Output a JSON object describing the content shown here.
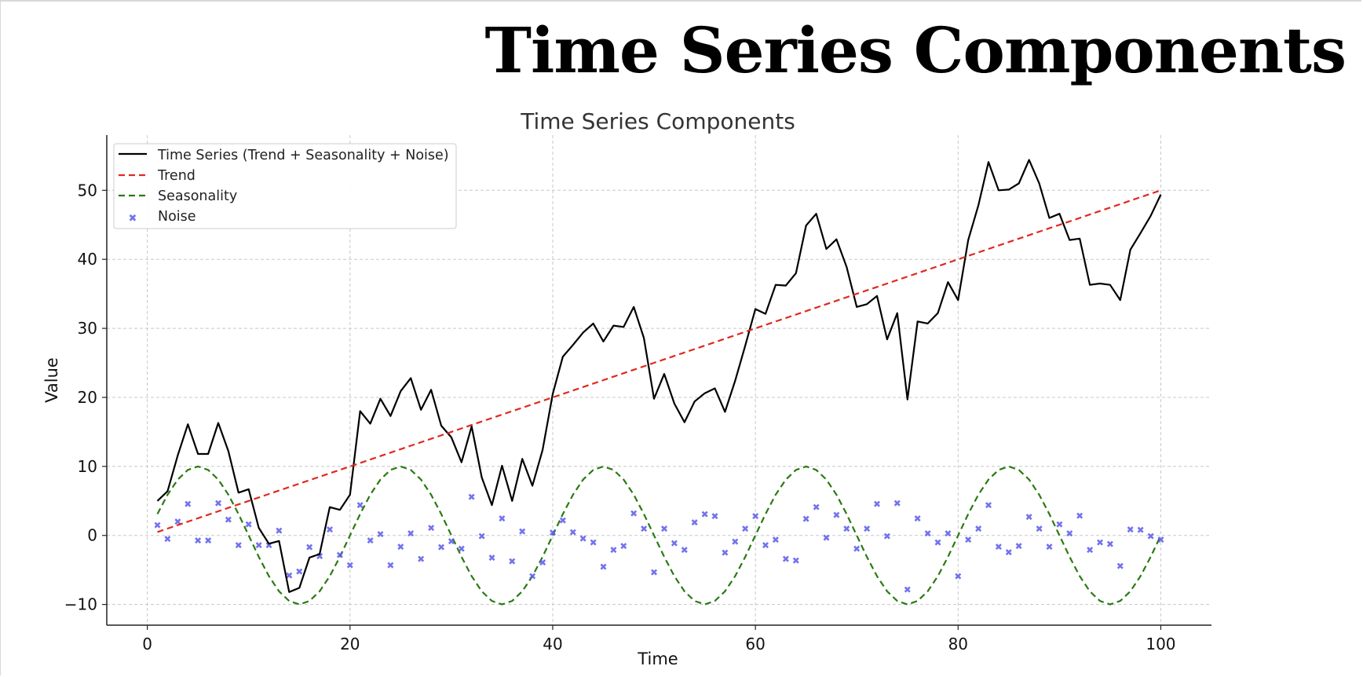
{
  "header": {
    "title": "Time Series Components"
  },
  "colors": {
    "series": "#000000",
    "trend": "#e0291f",
    "seasonality": "#2a7a12",
    "noise": "#5b5bea",
    "grid": "#c8c8c8"
  },
  "chart_data": {
    "type": "line",
    "title": "Time Series Components",
    "xlabel": "Time",
    "ylabel": "Value",
    "xlim": [
      -4,
      105
    ],
    "ylim": [
      -13,
      58
    ],
    "xticks": [
      0,
      20,
      40,
      60,
      80,
      100
    ],
    "xtick_labels": [
      "0",
      "20",
      "40",
      "60",
      "80",
      "100"
    ],
    "yticks": [
      -10,
      0,
      10,
      20,
      30,
      40,
      50
    ],
    "ytick_labels": [
      "−10",
      "0",
      "10",
      "20",
      "30",
      "40",
      "50"
    ],
    "grid": true,
    "legend_position": "top-left",
    "x": [
      1,
      2,
      3,
      4,
      5,
      6,
      7,
      8,
      9,
      10,
      11,
      12,
      13,
      14,
      15,
      16,
      17,
      18,
      19,
      20,
      21,
      22,
      23,
      24,
      25,
      26,
      27,
      28,
      29,
      30,
      31,
      32,
      33,
      34,
      35,
      36,
      37,
      38,
      39,
      40,
      41,
      42,
      43,
      44,
      45,
      46,
      47,
      48,
      49,
      50,
      51,
      52,
      53,
      54,
      55,
      56,
      57,
      58,
      59,
      60,
      61,
      62,
      63,
      64,
      65,
      66,
      67,
      68,
      69,
      70,
      71,
      72,
      73,
      74,
      75,
      76,
      77,
      78,
      79,
      80,
      81,
      82,
      83,
      84,
      85,
      86,
      87,
      88,
      89,
      90,
      91,
      92,
      93,
      94,
      95,
      96,
      97,
      98,
      99,
      100
    ],
    "series": [
      {
        "name": "Time Series (Trend + Seasonality + Noise)",
        "style": "solid",
        "values": [
          5.0,
          6.4,
          11.6,
          16.1,
          11.8,
          11.8,
          16.3,
          12.2,
          6.2,
          6.7,
          1.1,
          -1.2,
          -0.8,
          -8.2,
          -7.6,
          -3.2,
          -2.7,
          4.1,
          3.7,
          5.9,
          18.0,
          16.2,
          19.8,
          17.3,
          20.9,
          22.8,
          18.2,
          21.1,
          15.9,
          14.2,
          10.6,
          15.8,
          8.4,
          4.4,
          10.1,
          5.0,
          11.1,
          7.2,
          12.4,
          20.5,
          25.9,
          27.6,
          29.4,
          30.7,
          28.1,
          30.4,
          30.2,
          33.1,
          28.6,
          19.8,
          23.4,
          19.1,
          16.4,
          19.4,
          20.6,
          21.3,
          17.9,
          22.4,
          27.5,
          32.8,
          32.1,
          36.3,
          36.2,
          38.0,
          44.9,
          46.6,
          41.5,
          42.9,
          38.9,
          33.1,
          33.5,
          34.7,
          28.4,
          32.2,
          19.7,
          31.0,
          30.7,
          32.2,
          36.7,
          34.1,
          42.8,
          47.8,
          54.1,
          50.0,
          50.1,
          51.0,
          54.4,
          51.0,
          46.0,
          46.6,
          42.8,
          43.0,
          36.3,
          36.5,
          36.3,
          34.1,
          41.4,
          43.8,
          46.3,
          49.4
        ]
      },
      {
        "name": "Trend",
        "style": "dashed",
        "values": [
          0.5,
          1.0,
          1.5,
          2.0,
          2.5,
          3.0,
          3.5,
          4.0,
          4.5,
          5.0,
          5.5,
          6.0,
          6.5,
          7.0,
          7.5,
          8.0,
          8.5,
          9.0,
          9.5,
          10.0,
          10.5,
          11.0,
          11.5,
          12.0,
          12.5,
          13.0,
          13.5,
          14.0,
          14.5,
          15.0,
          15.5,
          16.0,
          16.5,
          17.0,
          17.5,
          18.0,
          18.5,
          19.0,
          19.5,
          20.0,
          20.5,
          21.0,
          21.5,
          22.0,
          22.5,
          23.0,
          23.5,
          24.0,
          24.5,
          25.0,
          25.5,
          26.0,
          26.5,
          27.0,
          27.5,
          28.0,
          28.5,
          29.0,
          29.5,
          30.0,
          30.5,
          31.0,
          31.5,
          32.0,
          32.5,
          33.0,
          33.5,
          34.0,
          34.5,
          35.0,
          35.5,
          36.0,
          36.5,
          37.0,
          37.5,
          38.0,
          38.5,
          39.0,
          39.5,
          40.0,
          40.5,
          41.0,
          41.5,
          42.0,
          42.5,
          43.0,
          43.5,
          44.0,
          44.5,
          45.0,
          45.5,
          46.0,
          46.5,
          47.0,
          47.5,
          48.0,
          48.5,
          49.0,
          49.5,
          50.0
        ]
      },
      {
        "name": "Seasonality",
        "style": "dashed",
        "values": [
          3.1,
          5.9,
          8.1,
          9.5,
          10.0,
          9.5,
          8.1,
          5.9,
          3.1,
          0.0,
          -3.1,
          -5.9,
          -8.1,
          -9.5,
          -10.0,
          -9.5,
          -8.1,
          -5.9,
          -3.1,
          0.0,
          3.1,
          5.9,
          8.1,
          9.5,
          10.0,
          9.5,
          8.1,
          5.9,
          3.1,
          0.0,
          -3.1,
          -5.9,
          -8.1,
          -9.5,
          -10.0,
          -9.5,
          -8.1,
          -5.9,
          -3.1,
          0.0,
          3.1,
          5.9,
          8.1,
          9.5,
          10.0,
          9.5,
          8.1,
          5.9,
          3.1,
          0.0,
          -3.1,
          -5.9,
          -8.1,
          -9.5,
          -10.0,
          -9.5,
          -8.1,
          -5.9,
          -3.1,
          0.0,
          3.1,
          5.9,
          8.1,
          9.5,
          10.0,
          9.5,
          8.1,
          5.9,
          3.1,
          0.0,
          -3.1,
          -5.9,
          -8.1,
          -9.5,
          -10.0,
          -9.5,
          -8.1,
          -5.9,
          -3.1,
          0.0,
          3.1,
          5.9,
          8.1,
          9.5,
          10.0,
          9.5,
          8.1,
          5.9,
          3.1,
          0.0,
          -3.1,
          -5.9,
          -8.1,
          -9.5,
          -10.0,
          -9.5,
          -8.1,
          -5.9,
          -3.1,
          0.0
        ]
      },
      {
        "name": "Noise",
        "style": "markers",
        "values": [
          1.5,
          -0.5,
          2.0,
          4.6,
          -0.7,
          -0.7,
          4.7,
          2.3,
          -1.4,
          1.6,
          -1.4,
          -1.4,
          0.7,
          -5.8,
          -5.2,
          -1.7,
          -3.0,
          0.9,
          -2.8,
          -4.3,
          4.4,
          -0.7,
          0.2,
          -4.3,
          -1.6,
          0.3,
          -3.4,
          1.1,
          -1.7,
          -0.8,
          -1.9,
          5.6,
          -0.1,
          -3.2,
          2.5,
          -3.7,
          0.6,
          -5.9,
          -3.9,
          0.4,
          2.2,
          0.5,
          -0.4,
          -1.0,
          -4.5,
          -2.1,
          -1.5,
          3.2,
          1.0,
          -5.3,
          1.0,
          -1.1,
          -2.1,
          1.9,
          3.1,
          2.8,
          -2.5,
          -0.9,
          1.0,
          2.8,
          -1.4,
          -0.6,
          -3.4,
          -3.6,
          2.4,
          4.1,
          -0.3,
          3.0,
          1.0,
          -1.9,
          1.0,
          4.6,
          -0.1,
          4.7,
          -7.8,
          2.5,
          0.3,
          -1.0,
          0.3,
          -5.9,
          -0.6,
          1.0,
          4.4,
          -1.6,
          -2.4,
          -1.5,
          2.7,
          1.0,
          -1.6,
          1.6,
          0.3,
          2.9,
          -2.1,
          -1.0,
          -1.2,
          -4.4,
          0.9,
          0.8,
          -0.1,
          -0.6
        ]
      }
    ]
  }
}
